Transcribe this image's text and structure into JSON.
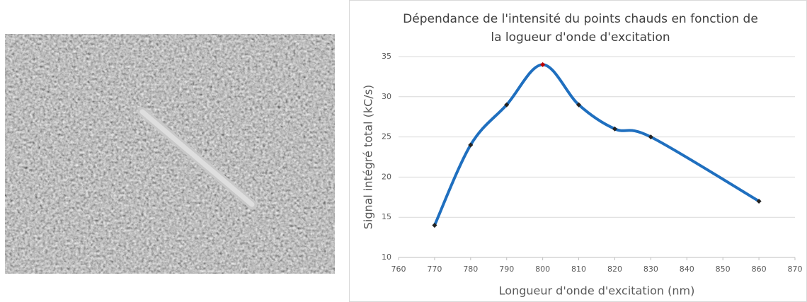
{
  "chart_data": {
    "type": "line",
    "title": "Dépendance de l'intensité du points chauds en fonction de la logueur d'onde d'excitation",
    "x_label": "Longueur d'onde d'excitation (nm)",
    "y_label": "Signal intégré total (kC/s)",
    "x": [
      770,
      780,
      790,
      800,
      810,
      820,
      830,
      860
    ],
    "series": [
      {
        "color": "#1f6fbf",
        "values": [
          14,
          24,
          29,
          34,
          29,
          26,
          25,
          17
        ],
        "marker_colors": [
          "#222222",
          "#222222",
          "#222222",
          "#c00000",
          "#222222",
          "#222222",
          "#222222",
          "#222222"
        ]
      }
    ],
    "smooth": true,
    "xlim": [
      760,
      870
    ],
    "xticks": [
      760,
      770,
      780,
      790,
      800,
      810,
      820,
      830,
      840,
      850,
      860,
      870
    ],
    "ylim": [
      10,
      35
    ],
    "yticks": [
      10,
      15,
      20,
      25,
      30,
      35
    ],
    "grid": true
  }
}
